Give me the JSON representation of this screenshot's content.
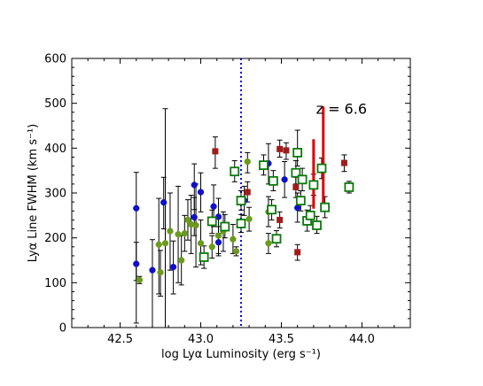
{
  "chart_data": {
    "type": "scatter",
    "title": "",
    "xlabel": "log Lyα Luminosity (erg s⁻¹)",
    "ylabel": "Lyα Line FWHM (km s⁻¹)",
    "xlim": [
      42.2,
      44.3
    ],
    "ylim": [
      0,
      600
    ],
    "xticks": [
      42.5,
      43.0,
      43.5,
      44.0
    ],
    "xtick_labels": [
      "42.5",
      "43.0",
      "43.5",
      "44.0"
    ],
    "yticks": [
      0,
      100,
      200,
      300,
      400,
      500,
      600
    ],
    "ytick_labels": [
      "0",
      "100",
      "200",
      "300",
      "400",
      "500",
      "600"
    ],
    "grid": false,
    "annotation": {
      "text": "z = 6.6",
      "x": 43.77,
      "y": 500
    },
    "reference_line": {
      "x": 43.25,
      "style": "dotted",
      "color": "#0000ff"
    },
    "series": [
      {
        "marker": "circle",
        "filled": true,
        "color": "#1010c8",
        "points": [
          {
            "x": 42.6,
            "y": 266,
            "lo": 10,
            "hi": 346
          },
          {
            "x": 42.6,
            "y": 142,
            "lo": 105,
            "hi": 190
          },
          {
            "x": 42.7,
            "y": 128,
            "lo": 0,
            "hi": 196
          },
          {
            "x": 42.77,
            "y": 279,
            "lo": 220,
            "hi": 335
          },
          {
            "x": 42.83,
            "y": 135,
            "lo": 75,
            "hi": 193
          },
          {
            "x": 42.96,
            "y": 318,
            "lo": 263,
            "hi": 365
          },
          {
            "x": 42.96,
            "y": 246,
            "lo": 205,
            "hi": 290
          },
          {
            "x": 43.0,
            "y": 302,
            "lo": 258,
            "hi": 345
          },
          {
            "x": 43.08,
            "y": 270,
            "lo": 225,
            "hi": 318
          },
          {
            "x": 43.11,
            "y": 247,
            "lo": 210,
            "hi": 288
          },
          {
            "x": 43.11,
            "y": 190,
            "lo": 160,
            "hi": 225
          },
          {
            "x": 43.27,
            "y": 283,
            "lo": 250,
            "hi": 315
          },
          {
            "x": 43.42,
            "y": 366,
            "lo": 320,
            "hi": 410
          },
          {
            "x": 43.52,
            "y": 330,
            "lo": 290,
            "hi": 370
          },
          {
            "x": 43.6,
            "y": 267,
            "lo": 235,
            "hi": 300
          }
        ]
      },
      {
        "marker": "circle",
        "filled": true,
        "color": "#6a9a1e",
        "points": [
          {
            "x": 42.62,
            "y": 106,
            "lo": 98,
            "hi": 114
          },
          {
            "x": 42.74,
            "y": 185,
            "lo": 75,
            "hi": 288
          },
          {
            "x": 42.75,
            "y": 123,
            "lo": 70,
            "hi": 172
          },
          {
            "x": 42.78,
            "y": 188,
            "lo": 0,
            "hi": 488
          },
          {
            "x": 42.81,
            "y": 215,
            "lo": 128,
            "hi": 300
          },
          {
            "x": 42.86,
            "y": 208,
            "lo": 100,
            "hi": 315
          },
          {
            "x": 42.88,
            "y": 150,
            "lo": 95,
            "hi": 205
          },
          {
            "x": 42.9,
            "y": 210,
            "lo": 170,
            "hi": 250
          },
          {
            "x": 42.92,
            "y": 240,
            "lo": 195,
            "hi": 285
          },
          {
            "x": 42.94,
            "y": 230,
            "lo": 165,
            "hi": 295
          },
          {
            "x": 42.97,
            "y": 228,
            "lo": 135,
            "hi": 320
          },
          {
            "x": 43.0,
            "y": 188,
            "lo": 140,
            "hi": 240
          },
          {
            "x": 43.07,
            "y": 180,
            "lo": 155,
            "hi": 205
          },
          {
            "x": 43.11,
            "y": 205,
            "lo": 165,
            "hi": 245
          },
          {
            "x": 43.14,
            "y": 215,
            "lo": 170,
            "hi": 258
          },
          {
            "x": 43.2,
            "y": 197,
            "lo": 165,
            "hi": 230
          },
          {
            "x": 43.22,
            "y": 170,
            "lo": 160,
            "hi": 180
          },
          {
            "x": 43.29,
            "y": 370,
            "lo": 345,
            "hi": 390
          },
          {
            "x": 43.3,
            "y": 242,
            "lo": 215,
            "hi": 268
          },
          {
            "x": 43.42,
            "y": 188,
            "lo": 165,
            "hi": 210
          },
          {
            "x": 43.42,
            "y": 258,
            "lo": 225,
            "hi": 292
          }
        ]
      },
      {
        "marker": "square",
        "filled": true,
        "color": "#a01c1c",
        "points": [
          {
            "x": 43.09,
            "y": 393,
            "lo": 355,
            "hi": 425
          },
          {
            "x": 43.29,
            "y": 302,
            "lo": 280,
            "hi": 325
          },
          {
            "x": 43.49,
            "y": 240,
            "lo": 222,
            "hi": 258
          },
          {
            "x": 43.49,
            "y": 398,
            "lo": 380,
            "hi": 418
          },
          {
            "x": 43.53,
            "y": 395,
            "lo": 375,
            "hi": 412
          },
          {
            "x": 43.59,
            "y": 313,
            "lo": 290,
            "hi": 335
          },
          {
            "x": 43.6,
            "y": 168,
            "lo": 150,
            "hi": 185
          },
          {
            "x": 43.89,
            "y": 367,
            "lo": 348,
            "hi": 385
          }
        ]
      },
      {
        "marker": "square",
        "filled": false,
        "color": "#0a7a0a",
        "points": [
          {
            "x": 43.02,
            "y": 157,
            "lo": 132,
            "hi": 182
          },
          {
            "x": 43.07,
            "y": 237,
            "lo": 210,
            "hi": 262
          },
          {
            "x": 43.15,
            "y": 225,
            "lo": 200,
            "hi": 252
          },
          {
            "x": 43.21,
            "y": 348,
            "lo": 325,
            "hi": 372
          },
          {
            "x": 43.25,
            "y": 283,
            "lo": 262,
            "hi": 305
          },
          {
            "x": 43.25,
            "y": 232,
            "lo": 212,
            "hi": 252
          },
          {
            "x": 43.39,
            "y": 362,
            "lo": 340,
            "hi": 385
          },
          {
            "x": 43.45,
            "y": 327,
            "lo": 305,
            "hi": 350
          },
          {
            "x": 43.44,
            "y": 263,
            "lo": 240,
            "hi": 285
          },
          {
            "x": 43.47,
            "y": 198,
            "lo": 180,
            "hi": 216
          },
          {
            "x": 43.59,
            "y": 345,
            "lo": 320,
            "hi": 372
          },
          {
            "x": 43.6,
            "y": 390,
            "lo": 360,
            "hi": 440
          },
          {
            "x": 43.62,
            "y": 283,
            "lo": 260,
            "hi": 305
          },
          {
            "x": 43.63,
            "y": 330,
            "lo": 305,
            "hi": 355
          },
          {
            "x": 43.66,
            "y": 238,
            "lo": 215,
            "hi": 262
          },
          {
            "x": 43.68,
            "y": 250,
            "lo": 230,
            "hi": 272
          },
          {
            "x": 43.7,
            "y": 318,
            "lo": 295,
            "hi": 342
          },
          {
            "x": 43.72,
            "y": 228,
            "lo": 210,
            "hi": 248
          },
          {
            "x": 43.75,
            "y": 355,
            "lo": 332,
            "hi": 378
          },
          {
            "x": 43.77,
            "y": 268,
            "lo": 245,
            "hi": 292
          },
          {
            "x": 43.92,
            "y": 313,
            "lo": 300,
            "hi": 326
          }
        ]
      }
    ],
    "highlight_bars": {
      "color": "#e00000",
      "bars": [
        {
          "x": 43.7,
          "lo": 265,
          "hi": 420
        },
        {
          "x": 43.76,
          "lo": 270,
          "hi": 493
        }
      ]
    }
  }
}
